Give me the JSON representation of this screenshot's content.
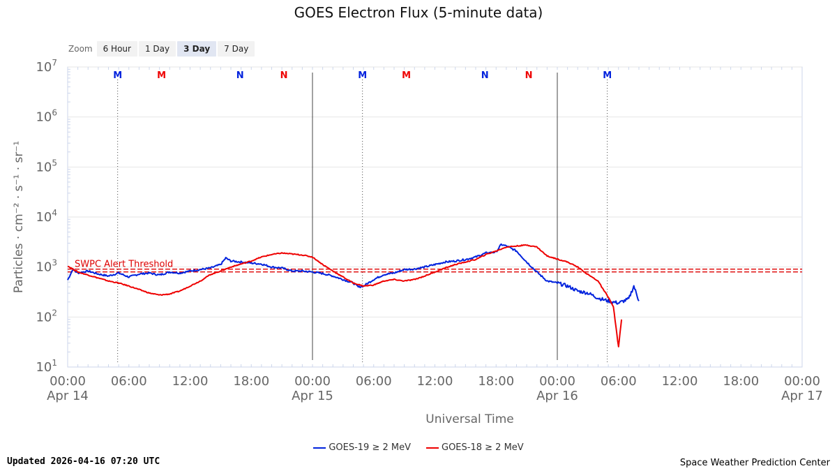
{
  "title": "GOES Electron Flux (5-minute data)",
  "zoom": {
    "label": "Zoom",
    "buttons": [
      "6 Hour",
      "1 Day",
      "3 Day",
      "7 Day"
    ],
    "active": "3 Day"
  },
  "updated": "Updated 2026-04-16 07:20 UTC",
  "credit": "Space Weather Prediction Center",
  "colors": {
    "goes19": "#0022dd",
    "goes18": "#ee0000",
    "threshold": "#dd0000",
    "grid": "#e6e6e6",
    "axis": "#ccd6eb"
  },
  "chart_data": {
    "type": "line",
    "title": "GOES Electron Flux (5-minute data)",
    "xlabel": "Universal Time",
    "ylabel": "Particles · cm⁻² · s⁻¹ · sr⁻¹",
    "xlim_hours": [
      0,
      72
    ],
    "ylim_log10": [
      1,
      7
    ],
    "y_ticks": [
      {
        "base": "10",
        "exp": "1"
      },
      {
        "base": "10",
        "exp": "2"
      },
      {
        "base": "10",
        "exp": "3"
      },
      {
        "base": "10",
        "exp": "4"
      },
      {
        "base": "10",
        "exp": "5"
      },
      {
        "base": "10",
        "exp": "6"
      },
      {
        "base": "10",
        "exp": "7"
      }
    ],
    "x_ticks": [
      {
        "h": 0,
        "time": "00:00",
        "date": "Apr 14"
      },
      {
        "h": 6,
        "time": "06:00",
        "date": ""
      },
      {
        "h": 12,
        "time": "12:00",
        "date": ""
      },
      {
        "h": 18,
        "time": "18:00",
        "date": ""
      },
      {
        "h": 24,
        "time": "00:00",
        "date": "Apr 15"
      },
      {
        "h": 30,
        "time": "06:00",
        "date": ""
      },
      {
        "h": 36,
        "time": "12:00",
        "date": ""
      },
      {
        "h": 42,
        "time": "18:00",
        "date": ""
      },
      {
        "h": 48,
        "time": "00:00",
        "date": "Apr 16"
      },
      {
        "h": 54,
        "time": "06:00",
        "date": ""
      },
      {
        "h": 60,
        "time": "12:00",
        "date": ""
      },
      {
        "h": 66,
        "time": "18:00",
        "date": ""
      },
      {
        "h": 72,
        "time": "00:00",
        "date": "Apr 17"
      }
    ],
    "threshold": {
      "label": "SWPC Alert Threshold",
      "log10": 2.93
    },
    "day_lines_hours": [
      24,
      48
    ],
    "markers": [
      {
        "h": 4.9,
        "letter": "M",
        "series": "goes19"
      },
      {
        "h": 9.2,
        "letter": "M",
        "series": "goes18"
      },
      {
        "h": 16.9,
        "letter": "N",
        "series": "goes19"
      },
      {
        "h": 21.2,
        "letter": "N",
        "series": "goes18"
      },
      {
        "h": 28.9,
        "letter": "M",
        "series": "goes19"
      },
      {
        "h": 33.2,
        "letter": "M",
        "series": "goes18"
      },
      {
        "h": 40.9,
        "letter": "N",
        "series": "goes19"
      },
      {
        "h": 45.2,
        "letter": "N",
        "series": "goes18"
      },
      {
        "h": 52.9,
        "letter": "M",
        "series": "goes19"
      }
    ],
    "series": [
      {
        "key": "goes19",
        "name": "GOES-19 ≥ 2 MeV",
        "color": "#0022dd",
        "points": [
          [
            0,
            2.74
          ],
          [
            0.5,
            2.95
          ],
          [
            1,
            2.88
          ],
          [
            2,
            2.92
          ],
          [
            3,
            2.86
          ],
          [
            4,
            2.82
          ],
          [
            5,
            2.88
          ],
          [
            6,
            2.8
          ],
          [
            7,
            2.86
          ],
          [
            8,
            2.88
          ],
          [
            9,
            2.84
          ],
          [
            10,
            2.9
          ],
          [
            11,
            2.88
          ],
          [
            12,
            2.92
          ],
          [
            13,
            2.95
          ],
          [
            14,
            2.98
          ],
          [
            15,
            3.05
          ],
          [
            15.5,
            3.18
          ],
          [
            16,
            3.12
          ],
          [
            17,
            3.1
          ],
          [
            18,
            3.08
          ],
          [
            19,
            3.06
          ],
          [
            20,
            3.0
          ],
          [
            21,
            2.98
          ],
          [
            22,
            2.92
          ],
          [
            23,
            2.92
          ],
          [
            24,
            2.9
          ],
          [
            25,
            2.87
          ],
          [
            26,
            2.82
          ],
          [
            27,
            2.75
          ],
          [
            28,
            2.68
          ],
          [
            28.5,
            2.6
          ],
          [
            29,
            2.62
          ],
          [
            30,
            2.75
          ],
          [
            31,
            2.85
          ],
          [
            32,
            2.88
          ],
          [
            33,
            2.95
          ],
          [
            34,
            2.96
          ],
          [
            35,
            3.0
          ],
          [
            36,
            3.05
          ],
          [
            37,
            3.1
          ],
          [
            38,
            3.12
          ],
          [
            39,
            3.15
          ],
          [
            40,
            3.2
          ],
          [
            41,
            3.28
          ],
          [
            42,
            3.3
          ],
          [
            42.5,
            3.45
          ],
          [
            43,
            3.42
          ],
          [
            44,
            3.32
          ],
          [
            45,
            3.1
          ],
          [
            46,
            2.9
          ],
          [
            47,
            2.72
          ],
          [
            48,
            2.68
          ],
          [
            49,
            2.62
          ],
          [
            50,
            2.52
          ],
          [
            51,
            2.48
          ],
          [
            52,
            2.38
          ],
          [
            53,
            2.32
          ],
          [
            54,
            2.28
          ],
          [
            55,
            2.36
          ],
          [
            55.5,
            2.62
          ],
          [
            56,
            2.32
          ]
        ]
      },
      {
        "key": "goes18",
        "name": "GOES-18 ≥ 2 MeV",
        "color": "#ee0000",
        "points": [
          [
            0,
            3.02
          ],
          [
            1,
            2.9
          ],
          [
            2,
            2.84
          ],
          [
            3,
            2.78
          ],
          [
            4,
            2.72
          ],
          [
            5,
            2.68
          ],
          [
            6,
            2.62
          ],
          [
            7,
            2.55
          ],
          [
            8,
            2.48
          ],
          [
            9,
            2.44
          ],
          [
            10,
            2.46
          ],
          [
            11,
            2.52
          ],
          [
            12,
            2.62
          ],
          [
            13,
            2.72
          ],
          [
            14,
            2.85
          ],
          [
            15,
            2.92
          ],
          [
            16,
            3.0
          ],
          [
            17,
            3.06
          ],
          [
            18,
            3.12
          ],
          [
            19,
            3.2
          ],
          [
            20,
            3.25
          ],
          [
            21,
            3.28
          ],
          [
            22,
            3.26
          ],
          [
            23,
            3.24
          ],
          [
            24,
            3.2
          ],
          [
            25,
            3.05
          ],
          [
            26,
            2.92
          ],
          [
            27,
            2.8
          ],
          [
            28,
            2.68
          ],
          [
            29,
            2.62
          ],
          [
            30,
            2.64
          ],
          [
            31,
            2.72
          ],
          [
            32,
            2.75
          ],
          [
            33,
            2.72
          ],
          [
            34,
            2.75
          ],
          [
            35,
            2.82
          ],
          [
            36,
            2.9
          ],
          [
            37,
            2.98
          ],
          [
            38,
            3.05
          ],
          [
            39,
            3.1
          ],
          [
            40,
            3.15
          ],
          [
            41,
            3.25
          ],
          [
            42,
            3.32
          ],
          [
            43,
            3.4
          ],
          [
            44,
            3.42
          ],
          [
            45,
            3.44
          ],
          [
            46,
            3.4
          ],
          [
            47,
            3.22
          ],
          [
            48,
            3.16
          ],
          [
            49,
            3.1
          ],
          [
            50,
            3.0
          ],
          [
            51,
            2.85
          ],
          [
            52,
            2.72
          ],
          [
            52.5,
            2.55
          ],
          [
            53,
            2.4
          ],
          [
            53.5,
            2.2
          ],
          [
            54,
            1.4
          ],
          [
            54.3,
            1.95
          ]
        ]
      }
    ]
  }
}
